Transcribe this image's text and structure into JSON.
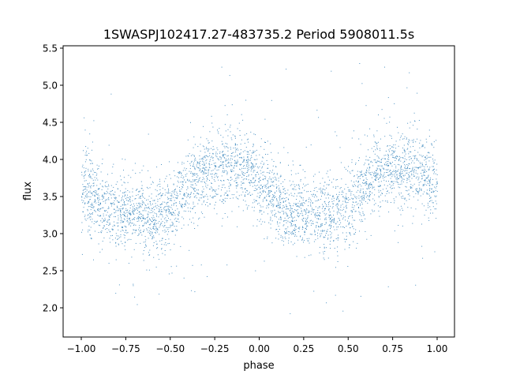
{
  "chart_data": {
    "type": "scatter",
    "title": "1SWASPJ102417.27-483735.2 Period 5908011.5s",
    "xlabel": "phase",
    "ylabel": "flux",
    "xlim": [
      -1.1,
      1.1
    ],
    "ylim": [
      1.6,
      5.55
    ],
    "xticks": [
      "−1.00",
      "−0.75",
      "−0.50",
      "−0.25",
      "0.00",
      "0.25",
      "0.50",
      "0.75",
      "1.00"
    ],
    "xtick_values": [
      -1.0,
      -0.75,
      -0.5,
      -0.25,
      0.0,
      0.25,
      0.5,
      0.75,
      1.0
    ],
    "yticks": [
      "2.0",
      "2.5",
      "3.0",
      "3.5",
      "4.0",
      "4.5",
      "5.0",
      "5.5"
    ],
    "ytick_values": [
      2.0,
      2.5,
      3.0,
      3.5,
      4.0,
      4.5,
      5.0,
      5.5
    ],
    "grid": false,
    "marker_color": "#1f77b4",
    "phase_profile": {
      "phase": [
        -1.0,
        -0.9,
        -0.8,
        -0.7,
        -0.6,
        -0.5,
        -0.4,
        -0.3,
        -0.2,
        -0.1,
        -0.05,
        0.0,
        0.1,
        0.2,
        0.3,
        0.4,
        0.5,
        0.6,
        0.7,
        0.8,
        0.9,
        1.0
      ],
      "median_flux": [
        3.65,
        3.4,
        3.3,
        3.25,
        3.25,
        3.3,
        3.65,
        3.85,
        3.9,
        3.85,
        3.85,
        3.7,
        3.4,
        3.3,
        3.3,
        3.25,
        3.35,
        3.7,
        3.85,
        3.9,
        3.85,
        3.65
      ],
      "scatter": 0.25
    }
  }
}
